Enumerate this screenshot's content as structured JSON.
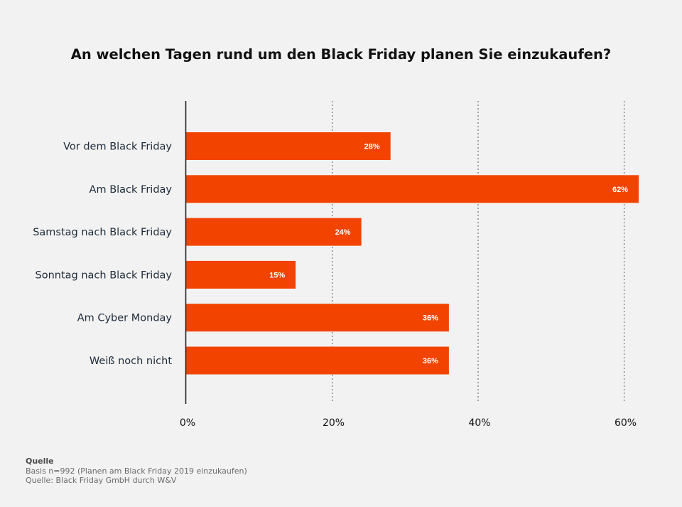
{
  "chart_data": {
    "type": "bar",
    "orientation": "horizontal",
    "title": "An welchen Tagen rund um den Black Friday planen Sie einzukaufen?",
    "categories": [
      "Vor dem Black Friday",
      "Am Black Friday",
      "Samstag nach Black Friday",
      "Sonntag nach Black Friday",
      "Am Cyber Monday",
      "Weiß noch nicht"
    ],
    "values": [
      28,
      62,
      24,
      15,
      36,
      36
    ],
    "value_labels": [
      "28%",
      "62%",
      "24%",
      "15%",
      "36%",
      "36%"
    ],
    "xlim": [
      0,
      62
    ],
    "x_ticks": [
      0,
      20,
      40,
      60
    ],
    "x_tick_labels": [
      "0%",
      "20%",
      "40%",
      "60%"
    ],
    "grid": "vertical dotted",
    "bar_color": "#f24400"
  },
  "source": {
    "heading": "Quelle",
    "line1": "Basis n=992 (Planen am Black Friday 2019 einzukaufen)",
    "line2": "Quelle: Black Friday GmbH durch W&V"
  }
}
